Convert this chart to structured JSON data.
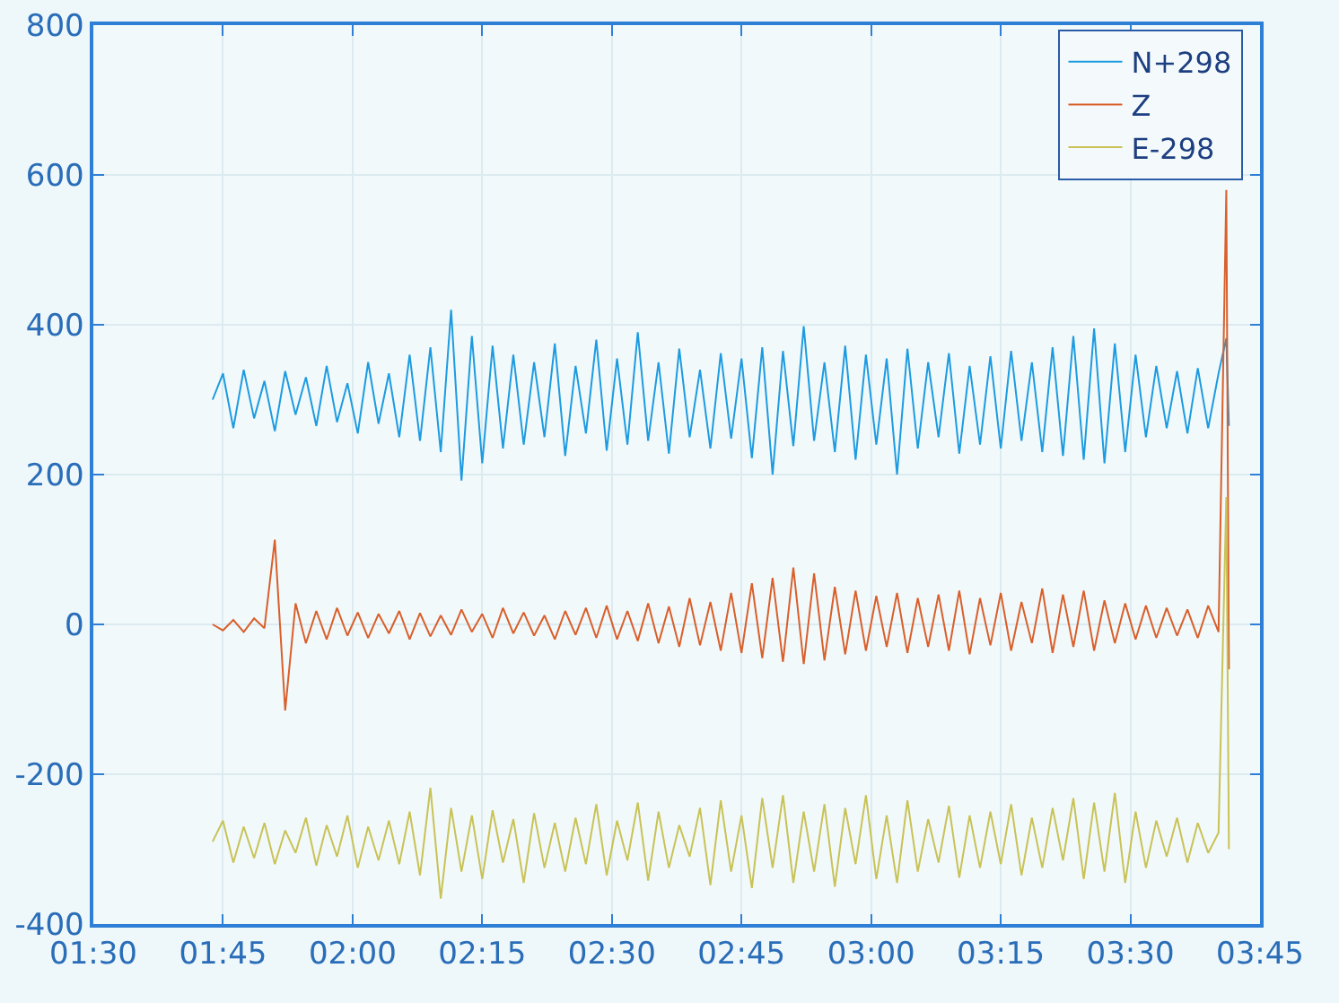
{
  "chart_data": {
    "type": "line",
    "x": [
      1.73,
      1.75,
      1.77,
      1.79,
      1.81,
      1.83,
      1.85,
      1.87,
      1.89,
      1.91,
      1.93,
      1.95,
      1.97,
      1.99,
      2.01,
      2.03,
      2.05,
      2.07,
      2.09,
      2.11,
      2.13,
      2.15,
      2.17,
      2.19,
      2.21,
      2.23,
      2.25,
      2.27,
      2.29,
      2.31,
      2.33,
      2.35,
      2.37,
      2.39,
      2.41,
      2.43,
      2.45,
      2.47,
      2.49,
      2.51,
      2.53,
      2.55,
      2.57,
      2.59,
      2.61,
      2.63,
      2.65,
      2.67,
      2.69,
      2.71,
      2.73,
      2.75,
      2.77,
      2.79,
      2.81,
      2.83,
      2.85,
      2.87,
      2.89,
      2.91,
      2.93,
      2.95,
      2.97,
      2.99,
      3.01,
      3.03,
      3.05,
      3.07,
      3.09,
      3.11,
      3.13,
      3.15,
      3.17,
      3.19,
      3.21,
      3.23,
      3.25,
      3.27,
      3.29,
      3.31,
      3.33,
      3.35,
      3.37,
      3.39,
      3.41,
      3.43,
      3.45,
      3.47,
      3.49,
      3.51,
      3.53,
      3.55,
      3.57,
      3.59,
      3.61,
      3.63,
      3.65,
      3.67,
      3.685,
      3.69
    ],
    "series": [
      {
        "name": "N+298",
        "color": "#1e9be0",
        "values": [
          300,
          335,
          262,
          340,
          275,
          325,
          258,
          338,
          280,
          330,
          265,
          345,
          270,
          322,
          255,
          350,
          268,
          335,
          250,
          360,
          245,
          370,
          230,
          420,
          192,
          385,
          215,
          372,
          235,
          360,
          240,
          350,
          250,
          375,
          225,
          345,
          255,
          380,
          232,
          355,
          240,
          390,
          245,
          350,
          228,
          368,
          250,
          340,
          235,
          362,
          248,
          355,
          222,
          370,
          200,
          365,
          238,
          398,
          245,
          350,
          230,
          372,
          220,
          360,
          240,
          355,
          200,
          368,
          235,
          350,
          250,
          362,
          228,
          345,
          240,
          358,
          235,
          365,
          245,
          350,
          230,
          370,
          225,
          385,
          220,
          395,
          215,
          375,
          230,
          360,
          250,
          345,
          262,
          338,
          255,
          342,
          262,
          335,
          382,
          265
        ]
      },
      {
        "name": "Z",
        "color": "#d95f2b",
        "values": [
          0,
          -8,
          6,
          -10,
          8,
          -5,
          113,
          -115,
          28,
          -25,
          18,
          -20,
          22,
          -15,
          16,
          -18,
          14,
          -12,
          18,
          -20,
          15,
          -16,
          12,
          -14,
          20,
          -10,
          14,
          -18,
          22,
          -12,
          16,
          -15,
          12,
          -20,
          18,
          -14,
          22,
          -18,
          25,
          -20,
          18,
          -22,
          28,
          -25,
          24,
          -30,
          35,
          -28,
          30,
          -35,
          42,
          -38,
          55,
          -45,
          62,
          -50,
          76,
          -53,
          68,
          -48,
          50,
          -40,
          45,
          -35,
          38,
          -30,
          42,
          -38,
          35,
          -30,
          40,
          -35,
          45,
          -40,
          35,
          -28,
          42,
          -35,
          30,
          -25,
          48,
          -38,
          40,
          -30,
          45,
          -35,
          32,
          -25,
          28,
          -20,
          25,
          -18,
          22,
          -15,
          20,
          -18,
          25,
          -10,
          580,
          -60
        ]
      },
      {
        "name": "E-298",
        "color": "#c9c256",
        "values": [
          -290,
          -262,
          -318,
          -270,
          -312,
          -265,
          -320,
          -275,
          -305,
          -258,
          -322,
          -268,
          -310,
          -255,
          -325,
          -270,
          -315,
          -262,
          -320,
          -250,
          -335,
          -218,
          -366,
          -245,
          -330,
          -255,
          -340,
          -248,
          -318,
          -260,
          -345,
          -252,
          -325,
          -265,
          -330,
          -258,
          -320,
          -240,
          -335,
          -262,
          -315,
          -238,
          -342,
          -250,
          -325,
          -268,
          -310,
          -245,
          -348,
          -235,
          -330,
          -255,
          -352,
          -232,
          -325,
          -228,
          -345,
          -250,
          -330,
          -240,
          -350,
          -245,
          -320,
          -228,
          -340,
          -255,
          -345,
          -235,
          -330,
          -260,
          -318,
          -242,
          -338,
          -255,
          -325,
          -250,
          -320,
          -240,
          -335,
          -258,
          -325,
          -245,
          -315,
          -232,
          -340,
          -238,
          -330,
          -225,
          -345,
          -250,
          -325,
          -262,
          -310,
          -258,
          -318,
          -265,
          -305,
          -278,
          170,
          -300
        ]
      }
    ],
    "xlim": [
      1.5,
      3.75
    ],
    "xticks": [
      {
        "value": 1.5,
        "label": "01:30"
      },
      {
        "value": 1.75,
        "label": "01:45"
      },
      {
        "value": 2,
        "label": "02:00"
      },
      {
        "value": 2.25,
        "label": "02:15"
      },
      {
        "value": 2.5,
        "label": "02:30"
      },
      {
        "value": 2.75,
        "label": "02:45"
      },
      {
        "value": 3,
        "label": "03:00"
      },
      {
        "value": 3.25,
        "label": "03:15"
      },
      {
        "value": 3.5,
        "label": "03:30"
      },
      {
        "value": 3.75,
        "label": "03:45"
      }
    ],
    "ylim": [
      -400,
      800
    ],
    "yticks": [
      -400,
      -200,
      0,
      200,
      400,
      600,
      800
    ],
    "grid": true,
    "legend": "top right",
    "line_style": "solid"
  }
}
